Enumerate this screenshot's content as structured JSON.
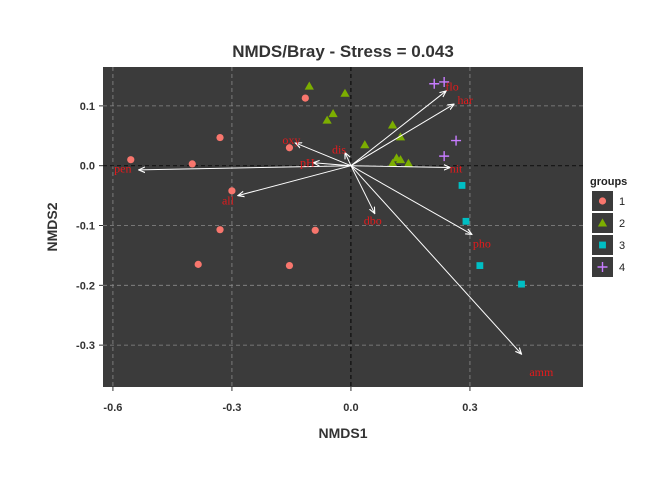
{
  "chart_data": {
    "type": "scatter",
    "title": "NMDS/Bray - Stress = 0.043",
    "xlabel": "NMDS1",
    "ylabel": "NMDS2",
    "xlim": [
      -0.625,
      0.585
    ],
    "ylim": [
      -0.37,
      0.165
    ],
    "xticks": [
      -0.6,
      -0.3,
      0.0,
      0.3
    ],
    "xtick_labels": [
      "-0.6",
      "-0.3",
      "0.0",
      "0.3"
    ],
    "yticks": [
      -0.3,
      -0.2,
      -0.1,
      0.0,
      0.1
    ],
    "ytick_labels": [
      "-0.3",
      "-0.2",
      "-0.1",
      "0.0",
      "0.1"
    ],
    "grid": true,
    "legend": {
      "title": "groups",
      "position": "right"
    },
    "colors": {
      "panel": "#3b3b3b",
      "grid": "#8a8a8a",
      "arrow": "#ffffff",
      "vector_label": "#e31a1c"
    },
    "series": [
      {
        "name": "1",
        "shape": "circle",
        "color": "#f8766d",
        "points": [
          [
            -0.555,
            0.01
          ],
          [
            -0.4,
            0.003
          ],
          [
            -0.33,
            0.047
          ],
          [
            -0.3,
            -0.042
          ],
          [
            -0.115,
            0.113
          ],
          [
            -0.155,
            0.03
          ],
          [
            -0.33,
            -0.107
          ],
          [
            -0.09,
            -0.108
          ],
          [
            -0.385,
            -0.165
          ],
          [
            -0.155,
            -0.167
          ]
        ]
      },
      {
        "name": "2",
        "shape": "triangle",
        "color": "#7cae00",
        "points": [
          [
            -0.105,
            0.133
          ],
          [
            -0.015,
            0.121
          ],
          [
            -0.045,
            0.087
          ],
          [
            -0.06,
            0.076
          ],
          [
            0.035,
            0.035
          ],
          [
            0.105,
            0.068
          ],
          [
            0.125,
            0.048
          ],
          [
            0.115,
            0.013
          ],
          [
            0.125,
            0.01
          ],
          [
            0.105,
            0.004
          ],
          [
            0.145,
            0.004
          ]
        ]
      },
      {
        "name": "3",
        "shape": "square",
        "color": "#00bfc4",
        "points": [
          [
            0.28,
            -0.033
          ],
          [
            0.29,
            -0.093
          ],
          [
            0.325,
            -0.167
          ],
          [
            0.43,
            -0.198
          ]
        ]
      },
      {
        "name": "4",
        "shape": "plus",
        "color": "#c77cff",
        "points": [
          [
            0.21,
            0.137
          ],
          [
            0.235,
            0.14
          ],
          [
            0.265,
            0.042
          ],
          [
            0.235,
            0.016
          ]
        ]
      }
    ],
    "vectors": [
      {
        "label": "pen",
        "x": -0.535,
        "y": -0.007,
        "lx": -0.575,
        "ly": -0.005
      },
      {
        "label": "all",
        "x": -0.285,
        "y": -0.05,
        "lx": -0.31,
        "ly": -0.058
      },
      {
        "label": "oxy",
        "x": -0.14,
        "y": 0.038,
        "lx": -0.15,
        "ly": 0.043
      },
      {
        "label": "pH",
        "x": -0.095,
        "y": 0.005,
        "lx": -0.11,
        "ly": 0.005
      },
      {
        "label": "dis",
        "x": -0.015,
        "y": 0.022,
        "lx": -0.03,
        "ly": 0.027
      },
      {
        "label": "dbo",
        "x": 0.06,
        "y": -0.08,
        "lx": 0.055,
        "ly": -0.092
      },
      {
        "label": "flo",
        "x": 0.24,
        "y": 0.125,
        "lx": 0.255,
        "ly": 0.132
      },
      {
        "label": "har",
        "x": 0.26,
        "y": 0.103,
        "lx": 0.288,
        "ly": 0.11
      },
      {
        "label": "nit",
        "x": 0.25,
        "y": -0.003,
        "lx": 0.265,
        "ly": -0.005
      },
      {
        "label": "pho",
        "x": 0.305,
        "y": -0.115,
        "lx": 0.33,
        "ly": -0.13
      },
      {
        "label": "amm",
        "x": 0.43,
        "y": -0.315,
        "lx": 0.48,
        "ly": -0.345
      }
    ]
  }
}
